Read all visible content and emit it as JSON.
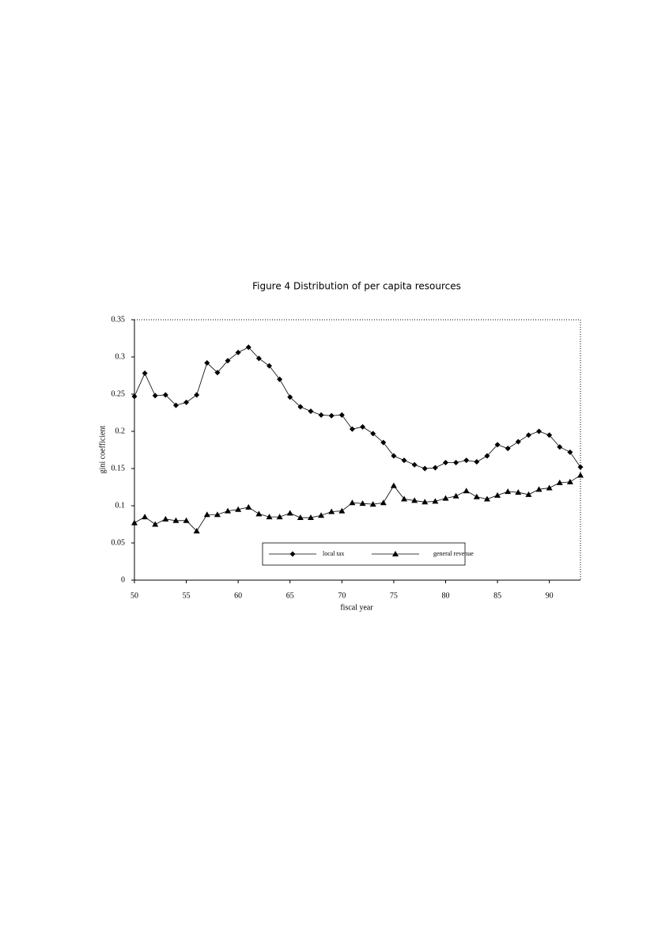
{
  "chart_data": {
    "type": "line",
    "title": "Figure 4  Distribution of per capita resources",
    "x_label": "fiscal year",
    "y_label": "gini coefficient",
    "x": [
      50,
      51,
      52,
      53,
      54,
      55,
      56,
      57,
      58,
      59,
      60,
      61,
      62,
      63,
      64,
      65,
      66,
      67,
      68,
      69,
      70,
      71,
      72,
      73,
      74,
      75,
      76,
      77,
      78,
      79,
      80,
      81,
      82,
      83,
      84,
      85,
      86,
      87,
      88,
      89,
      90,
      91,
      92,
      93
    ],
    "series": [
      {
        "name": "local tax",
        "color": "#000000",
        "marker": "diamond",
        "values": [
          0.247,
          0.278,
          0.248,
          0.249,
          0.235,
          0.239,
          0.249,
          0.292,
          0.279,
          0.295,
          0.306,
          0.313,
          0.298,
          0.288,
          0.27,
          0.246,
          0.233,
          0.227,
          0.222,
          0.221,
          0.222,
          0.203,
          0.206,
          0.197,
          0.185,
          0.167,
          0.161,
          0.155,
          0.15,
          0.151,
          0.158,
          0.158,
          0.161,
          0.159,
          0.167,
          0.182,
          0.177,
          0.186,
          0.195,
          0.2,
          0.195,
          0.179,
          0.172,
          0.152
        ]
      },
      {
        "name": "general revenue",
        "color": "#000000",
        "marker": "triangle",
        "values": [
          0.077,
          0.085,
          0.075,
          0.082,
          0.08,
          0.08,
          0.066,
          0.088,
          0.088,
          0.093,
          0.095,
          0.098,
          0.089,
          0.085,
          0.085,
          0.09,
          0.084,
          0.084,
          0.087,
          0.092,
          0.093,
          0.104,
          0.103,
          0.102,
          0.104,
          0.127,
          0.109,
          0.107,
          0.105,
          0.106,
          0.11,
          0.113,
          0.12,
          0.112,
          0.109,
          0.114,
          0.119,
          0.118,
          0.115,
          0.122,
          0.124,
          0.131,
          0.132,
          0.141
        ]
      }
    ],
    "xlim": [
      50,
      93
    ],
    "xticks": [
      50,
      55,
      60,
      65,
      70,
      75,
      80,
      85,
      90
    ],
    "ylim": [
      0,
      0.35
    ],
    "yticks": [
      0,
      0.05,
      0.1,
      0.15,
      0.2,
      0.25,
      0.3,
      0.35
    ]
  }
}
